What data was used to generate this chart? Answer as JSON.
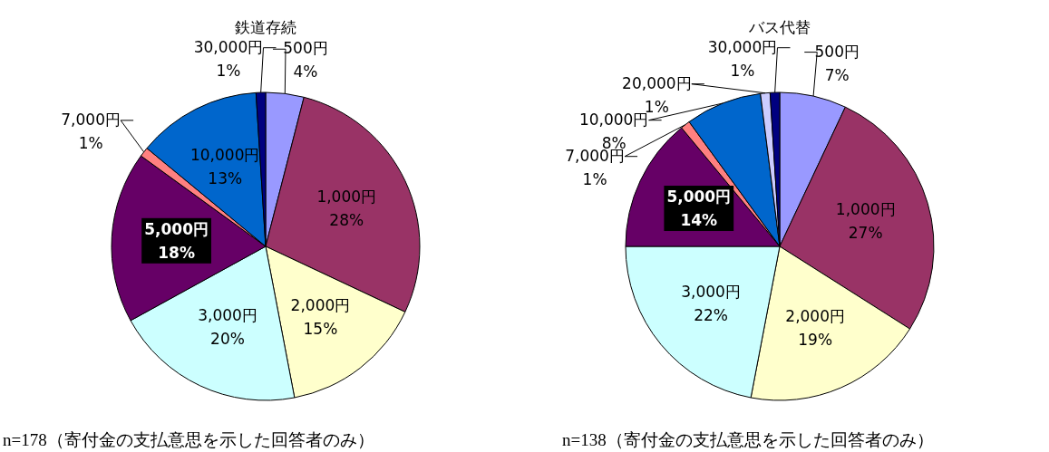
{
  "chart_data": [
    {
      "type": "pie",
      "title": "鉄道存続",
      "categories": [
        "500円",
        "1,000円",
        "2,000円",
        "3,000円",
        "5,000円",
        "7,000円",
        "10,000円",
        "30,000円"
      ],
      "values": [
        4,
        28,
        15,
        20,
        18,
        1,
        13,
        1
      ],
      "value_labels": [
        "4%",
        "28%",
        "15%",
        "20%",
        "18%",
        "1%",
        "13%",
        "1%"
      ],
      "colors": [
        "#9999ff",
        "#993366",
        "#ffffcc",
        "#ccffff",
        "#660066",
        "#ff8080",
        "#0066cc",
        "#000080"
      ],
      "annotations": [
        "n=178（寄付金の支払意思を示した回答者のみ）"
      ]
    },
    {
      "type": "pie",
      "title": "バス代替",
      "categories": [
        "500円",
        "1,000円",
        "2,000円",
        "3,000円",
        "5,000円",
        "7,000円",
        "10,000円",
        "20,000円",
        "30,000円"
      ],
      "values": [
        7,
        27,
        19,
        22,
        14,
        1,
        8,
        1,
        1
      ],
      "value_labels": [
        "7%",
        "27%",
        "19%",
        "22%",
        "14%",
        "1%",
        "8%",
        "1%",
        "1%"
      ],
      "colors": [
        "#9999ff",
        "#993366",
        "#ffffcc",
        "#ccffff",
        "#660066",
        "#ff8080",
        "#0066cc",
        "#ccccff",
        "#000080"
      ],
      "annotations": [
        "n=138（寄付金の支払意思を示した回答者のみ）"
      ]
    }
  ]
}
